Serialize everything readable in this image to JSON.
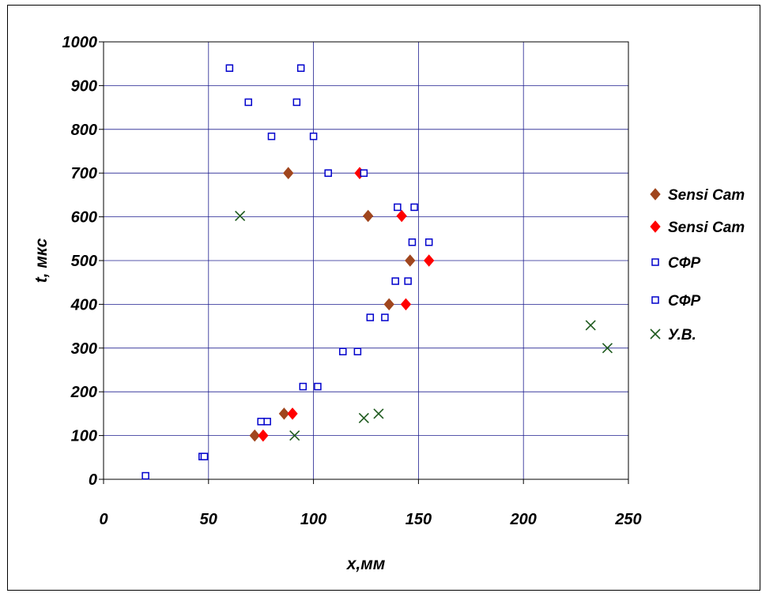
{
  "chart_data": {
    "type": "scatter",
    "title": "",
    "xlabel": "x,мм",
    "ylabel": "t, мкс",
    "xlim": [
      0,
      250
    ],
    "ylim": [
      0,
      1000
    ],
    "xticks": [
      0,
      50,
      100,
      150,
      200,
      250
    ],
    "yticks": [
      0,
      100,
      200,
      300,
      400,
      500,
      600,
      700,
      800,
      900,
      1000
    ],
    "grid": true,
    "legend_position": "right",
    "series": [
      {
        "name": "Sensi Cam",
        "marker": "diamond",
        "color": "#a0461e",
        "points": [
          [
            72,
            100
          ],
          [
            86,
            150
          ],
          [
            88,
            700
          ],
          [
            126,
            602
          ],
          [
            136,
            400
          ],
          [
            146,
            500
          ]
        ]
      },
      {
        "name": "Sensi Cam",
        "marker": "diamond",
        "color": "#ff0000",
        "points": [
          [
            76,
            100
          ],
          [
            90,
            150
          ],
          [
            122,
            700
          ],
          [
            142,
            602
          ],
          [
            144,
            400
          ],
          [
            155,
            500
          ]
        ]
      },
      {
        "name": "СФР",
        "marker": "square",
        "color": "#0000cc",
        "points": [
          [
            20,
            8
          ],
          [
            47,
            52
          ],
          [
            60,
            940
          ],
          [
            69,
            862
          ],
          [
            75,
            132
          ],
          [
            80,
            784
          ],
          [
            95,
            212
          ],
          [
            107,
            700
          ],
          [
            114,
            292
          ],
          [
            127,
            370
          ],
          [
            139,
            453
          ],
          [
            140,
            622
          ],
          [
            147,
            542
          ]
        ]
      },
      {
        "name": "СФР",
        "marker": "square",
        "color": "#0000cc",
        "points": [
          [
            48,
            52
          ],
          [
            78,
            132
          ],
          [
            92,
            862
          ],
          [
            94,
            940
          ],
          [
            100,
            784
          ],
          [
            102,
            212
          ],
          [
            121,
            292
          ],
          [
            124,
            700
          ],
          [
            134,
            370
          ],
          [
            145,
            453
          ],
          [
            148,
            622
          ],
          [
            155,
            542
          ]
        ]
      },
      {
        "name": "У.В.",
        "marker": "x",
        "color": "#1e5a1e",
        "points": [
          [
            65,
            602
          ],
          [
            91,
            100
          ],
          [
            124,
            140
          ],
          [
            131,
            150
          ],
          [
            232,
            352
          ],
          [
            240,
            300
          ]
        ]
      }
    ]
  }
}
